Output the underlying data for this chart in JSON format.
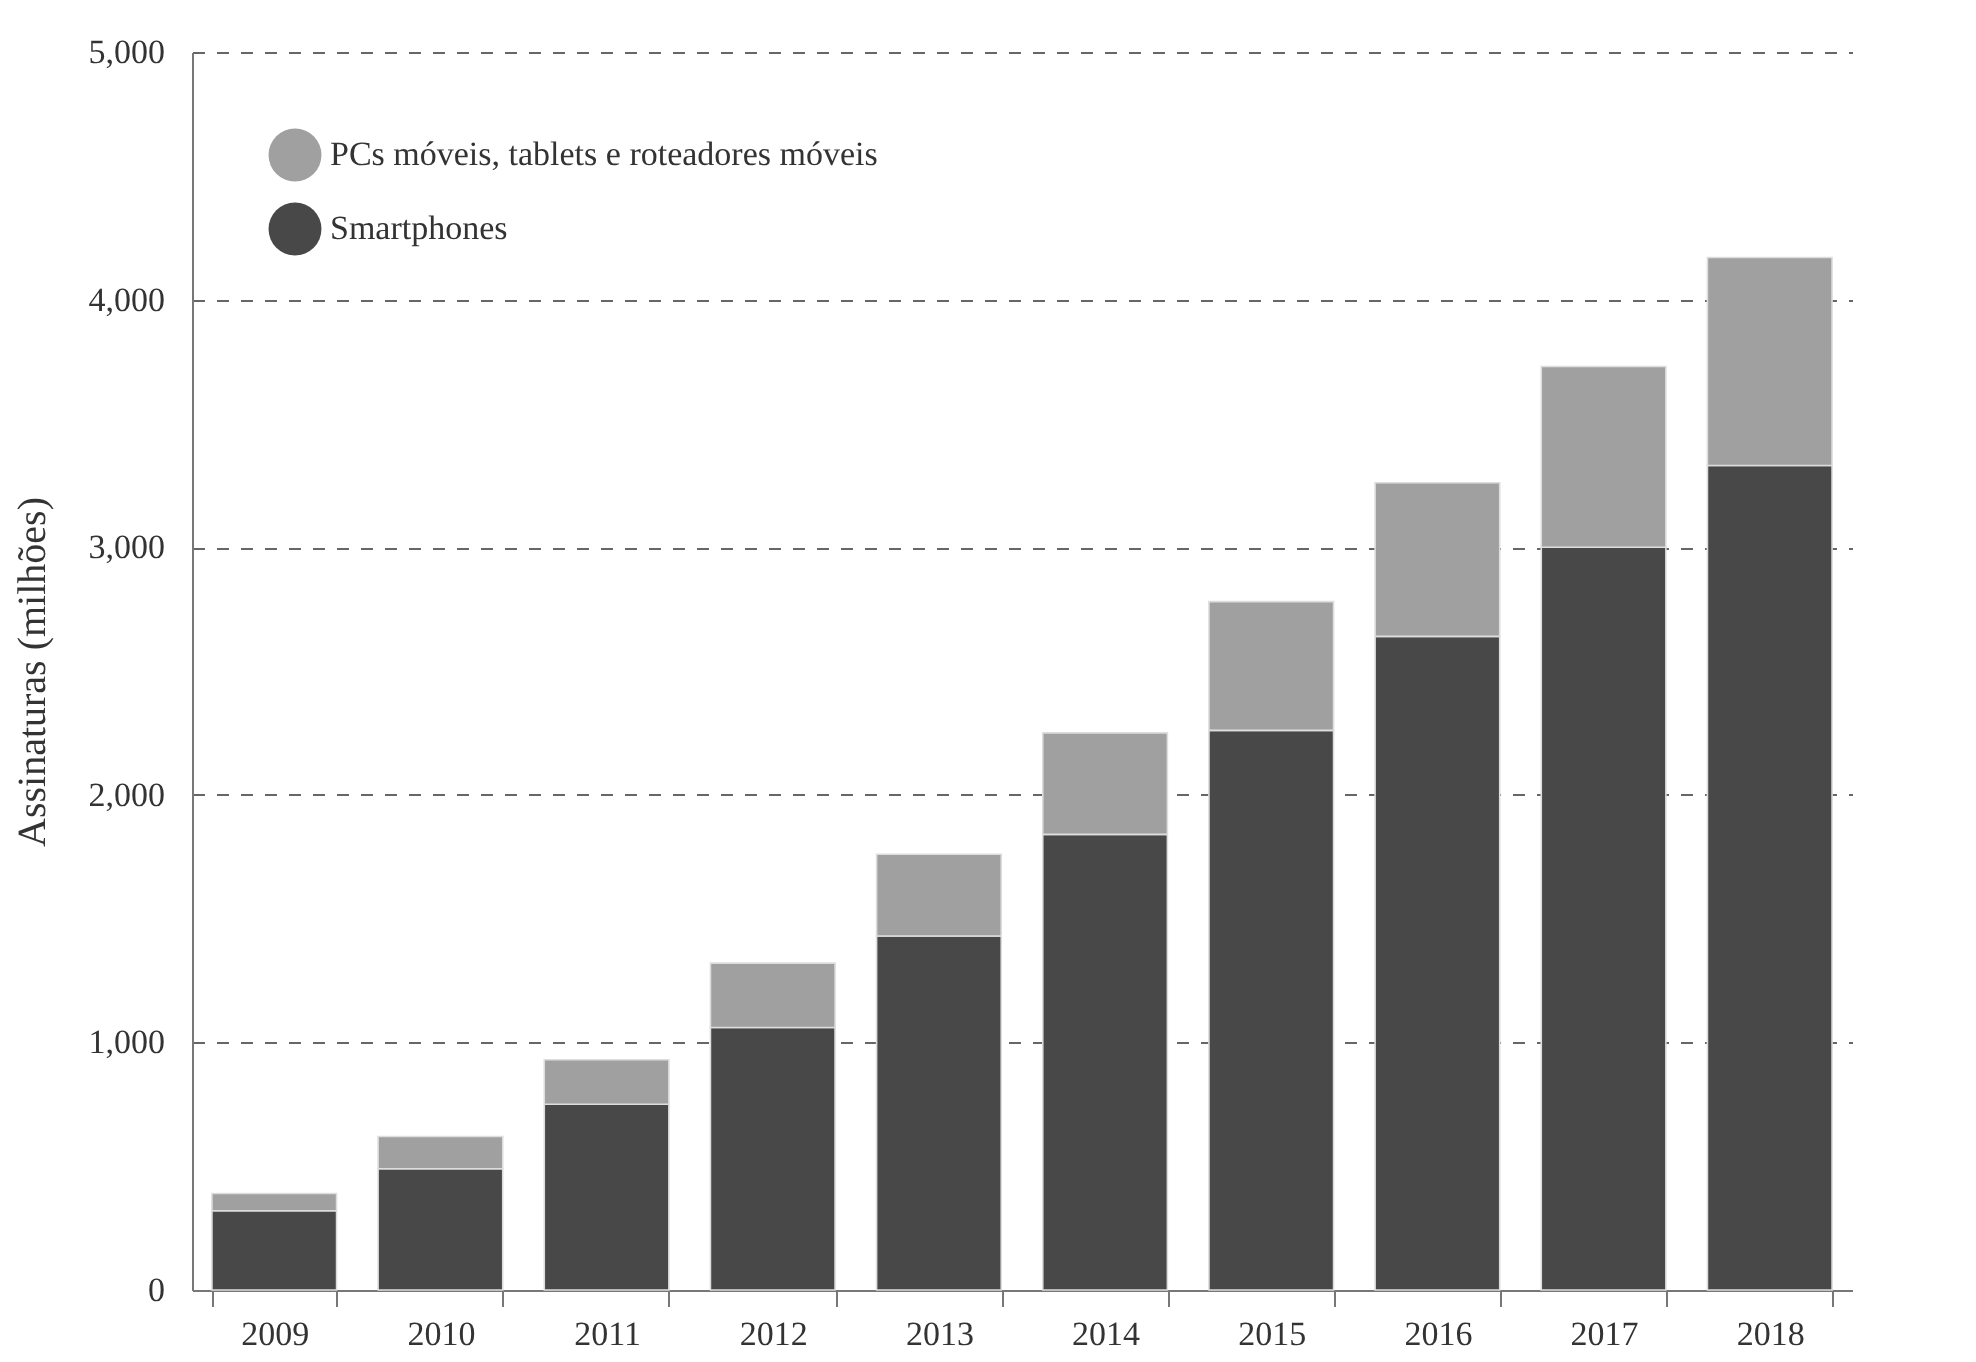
{
  "chart_data": {
    "type": "bar",
    "stacked": true,
    "ylabel": "Assinaturas (milhões)",
    "categories": [
      "2009",
      "2010",
      "2011",
      "2012",
      "2013",
      "2014",
      "2015",
      "2016",
      "2017",
      "2018"
    ],
    "series": [
      {
        "name": "Smartphones",
        "color": "#484848",
        "values": [
          320,
          490,
          750,
          1060,
          1430,
          1840,
          2260,
          2640,
          3000,
          3330
        ]
      },
      {
        "name": "PCs móveis, tablets e roteadores móveis",
        "color": "#a0a0a0",
        "values": [
          70,
          130,
          180,
          260,
          330,
          410,
          520,
          620,
          730,
          840
        ]
      }
    ],
    "ylim": [
      0,
      5000
    ],
    "yticks": [
      0,
      {
        "value": 1000,
        "label": "1,000"
      },
      {
        "value": 2000,
        "label": "2,000"
      },
      {
        "value": 3000,
        "label": "3,000"
      },
      {
        "value": 4000,
        "label": "4,000"
      },
      {
        "value": 5000,
        "label": "5,000"
      }
    ],
    "grid": "y",
    "legend": "top left"
  }
}
